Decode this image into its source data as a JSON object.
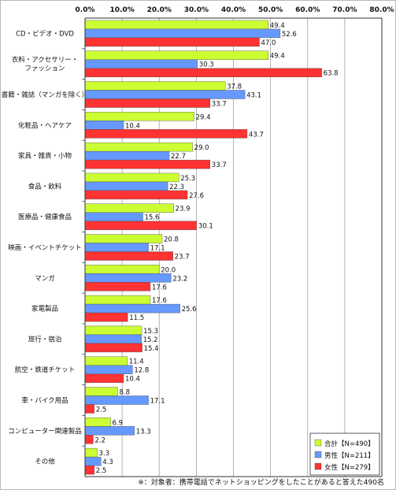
{
  "chart_data": {
    "type": "bar",
    "orientation": "horizontal",
    "xlim": [
      0,
      80
    ],
    "xticks": [
      "0.0%",
      "10.0%",
      "20.0%",
      "30.0%",
      "40.0%",
      "50.0%",
      "60.0%",
      "70.0%",
      "80.0%"
    ],
    "grid": true,
    "legend_position": "bottom-right",
    "categories": [
      [
        "CD・ビデオ・DVD"
      ],
      [
        "衣料・アクセサリー・",
        "ファッション"
      ],
      [
        "書籍・雑誌（マンガを除く）"
      ],
      [
        "化粧品・ヘアケア"
      ],
      [
        "家具・雑貨・小物"
      ],
      [
        "食品・飲料"
      ],
      [
        "医療品・健康食品"
      ],
      [
        "映画・イベントチケット"
      ],
      [
        "マンガ"
      ],
      [
        "家電製品"
      ],
      [
        "旅行・宿泊"
      ],
      [
        "航空・鉄道チケット"
      ],
      [
        "車・バイク用品"
      ],
      [
        "コンピューター関連製品"
      ],
      [
        "その他"
      ]
    ],
    "series": [
      {
        "name": "合計【N=490】",
        "color": "#ccff33",
        "values": [
          49.4,
          49.4,
          37.8,
          29.4,
          29.0,
          25.3,
          23.9,
          20.8,
          20.0,
          17.6,
          15.3,
          11.4,
          8.8,
          6.9,
          3.3
        ]
      },
      {
        "name": "男性【N=211】",
        "color": "#6699ff",
        "values": [
          52.6,
          30.3,
          43.1,
          10.4,
          22.7,
          22.3,
          15.6,
          17.1,
          23.2,
          25.6,
          15.2,
          12.8,
          17.1,
          13.3,
          4.3
        ]
      },
      {
        "name": "女性【N=279】",
        "color": "#ff3333",
        "values": [
          47.0,
          63.8,
          33.7,
          43.7,
          33.7,
          27.6,
          30.1,
          23.7,
          17.6,
          11.5,
          15.4,
          10.4,
          2.5,
          2.2,
          2.5
        ]
      }
    ]
  },
  "footnote": "※：対象者：携帯電話でネットショッピングをしたことがあると答えた490名"
}
